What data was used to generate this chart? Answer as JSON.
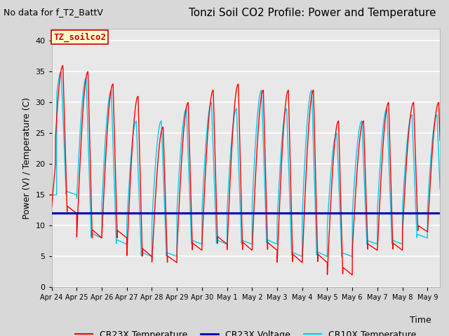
{
  "title": "Tonzi Soil CO2 Profile: Power and Temperature",
  "subtitle": "No data for f_T2_BattV",
  "ylabel": "Power (V) / Temperature (C)",
  "xlabel": "Time",
  "ylim": [
    0,
    42
  ],
  "yticks": [
    0,
    5,
    10,
    15,
    20,
    25,
    30,
    35,
    40
  ],
  "xlim_days": [
    0,
    15.5
  ],
  "x_tick_labels": [
    "Apr 24",
    "Apr 25",
    "Apr 26",
    "Apr 27",
    "Apr 28",
    "Apr 29",
    "Apr 30",
    "May 1",
    "May 2",
    "May 3",
    "May 4",
    "May 5",
    "May 6",
    "May 7",
    "May 8",
    "May 9"
  ],
  "x_tick_positions": [
    0,
    1,
    2,
    3,
    4,
    5,
    6,
    7,
    8,
    9,
    10,
    11,
    12,
    13,
    14,
    15
  ],
  "voltage_value": 12.0,
  "legend_entries": [
    "CR23X Temperature",
    "CR23X Voltage",
    "CR10X Temperature"
  ],
  "legend_colors": [
    "#ff0000",
    "#0000bb",
    "#00ccee"
  ],
  "cr23x_color": "#ff0000",
  "cr10x_color": "#00ccee",
  "voltage_color": "#0000bb",
  "plot_bg_color": "#e8e8e8",
  "fig_bg_color": "#d8d8d8",
  "grid_color": "#ffffff",
  "annotation_text": "TZ_soilco2",
  "annotation_bg": "#ffffcc",
  "annotation_border": "#cc0000",
  "title_fontsize": 11,
  "subtitle_fontsize": 9,
  "axis_label_fontsize": 9,
  "tick_fontsize": 8,
  "legend_fontsize": 9
}
